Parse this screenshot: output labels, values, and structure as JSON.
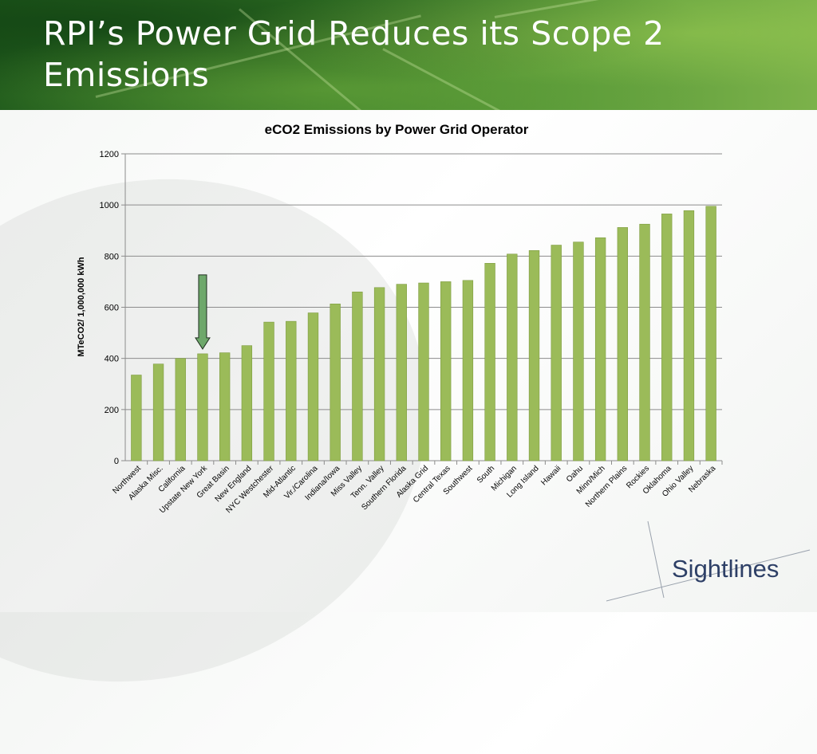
{
  "slide": {
    "title": "RPI’s Power Grid Reduces its Scope 2 Emissions",
    "logo_text": "Sightlines"
  },
  "colors": {
    "bar": "#9bbb59",
    "bar_edge": "#7e9c40",
    "arrow": "#6ea86b",
    "grid": "#8c8c8c",
    "logo": "#2d3f66"
  },
  "annotation": {
    "type": "arrow",
    "points_to": "Upstate New York"
  },
  "chart_data": {
    "type": "bar",
    "title": "eCO2 Emissions by Power Grid Operator",
    "ylabel": "MTeCO2/ 1,000,000 kWh",
    "xlabel": "",
    "ylim": [
      0,
      1200
    ],
    "yticks": [
      0,
      200,
      400,
      600,
      800,
      1000,
      1200
    ],
    "grid": true,
    "categories": [
      "Northwest",
      "Alaska Misc.",
      "California",
      "Upstate New York",
      "Great Basin",
      "New England",
      "NYC Westchester",
      "Mid-Atlantic",
      "Vir./Carolina",
      "Indiana/Iowa",
      "Miss Valley",
      "Tenn. Valley",
      "Southern Florida",
      "Alaska Grid",
      "Central Texas",
      "Southwest",
      "South",
      "Michigan",
      "Long Island",
      "Hawaii",
      "Oahu",
      "Minn/Mich",
      "Northern Plains",
      "Rockies",
      "Oklahoma",
      "Ohio Valley",
      "Nebraska"
    ],
    "values": [
      335,
      378,
      400,
      418,
      422,
      450,
      542,
      545,
      578,
      613,
      660,
      677,
      690,
      695,
      700,
      705,
      772,
      808,
      822,
      843,
      855,
      872,
      912,
      925,
      965,
      978,
      995
    ]
  }
}
